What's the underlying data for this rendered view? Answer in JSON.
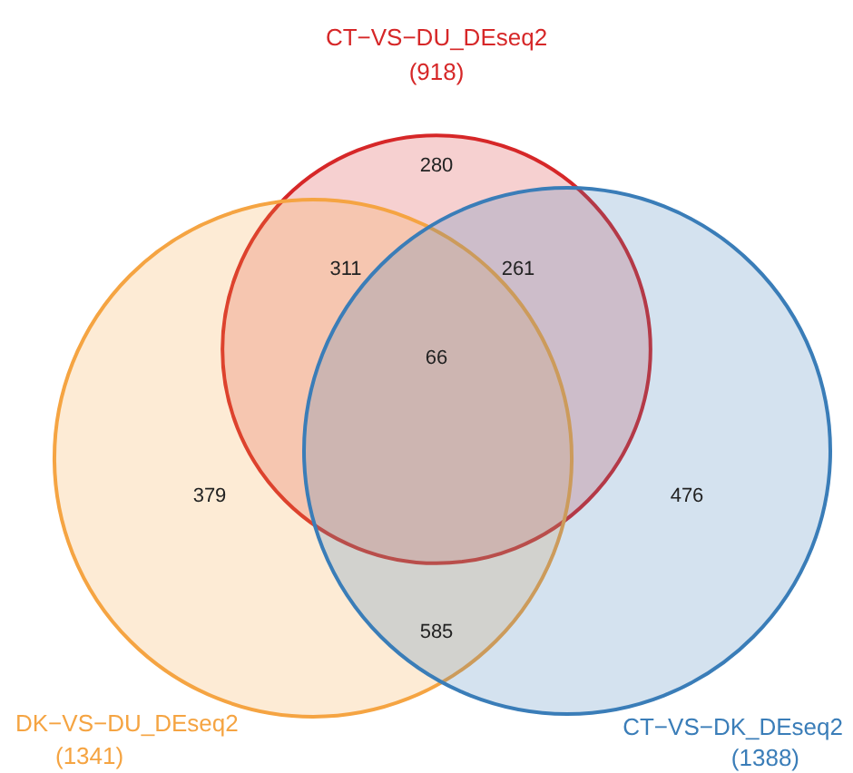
{
  "chart_data": {
    "type": "other",
    "categories": [
      "CT−VS−DU_DEseq2",
      "DK−VS−DU_DEseq2",
      "CT−VS−DK_DEseq2"
    ],
    "values": [
      918,
      1341,
      1388
    ],
    "value_labels": [
      "(918)",
      "(1341)",
      "(1388)"
    ],
    "colors": [
      "#d62728",
      "#f5a442",
      "#3a7db8"
    ],
    "annotations": [
      "280",
      "311",
      "261",
      "66",
      "379",
      "585",
      "476"
    ]
  }
}
